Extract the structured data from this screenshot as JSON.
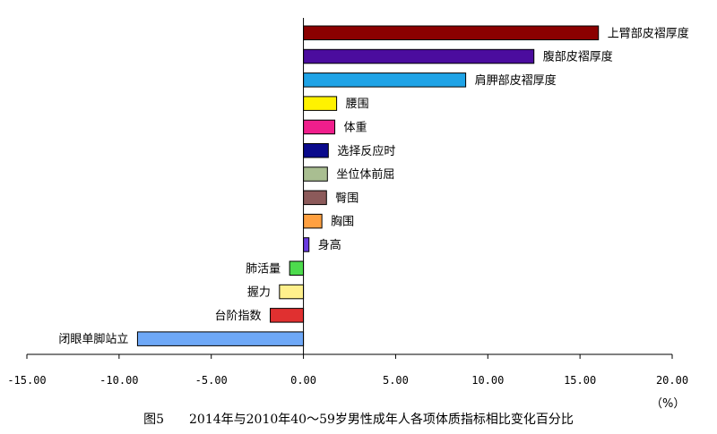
{
  "chart_data": {
    "type": "bar",
    "orientation": "horizontal",
    "categories": [
      "上臂部皮褶厚度",
      "腹部皮褶厚度",
      "肩胛部皮褶厚度",
      "腰围",
      "体重",
      "选择反应时",
      "坐位体前屈",
      "臀围",
      "胸围",
      "身高",
      "肺活量",
      "握力",
      "台阶指数",
      "闭眼单脚站立"
    ],
    "values": [
      16.0,
      12.5,
      8.8,
      1.8,
      1.7,
      1.35,
      1.3,
      1.25,
      1.0,
      0.3,
      -0.75,
      -1.3,
      -1.8,
      -9.0
    ],
    "colors": [
      "#8B0000",
      "#4B0C9E",
      "#1FA3E6",
      "#FFF200",
      "#F01E8C",
      "#0A0A8C",
      "#A9BE91",
      "#8C5A5A",
      "#FFA040",
      "#6A3BE0",
      "#4DDB4D",
      "#FFF08C",
      "#E03030",
      "#6EA8F7"
    ],
    "xlim": [
      -15,
      20
    ],
    "xticks": [
      "-15.00",
      "-10.00",
      "-5.00",
      "0.00",
      "5.00",
      "10.00",
      "15.00",
      "20.00"
    ],
    "xtick_values": [
      -15,
      -10,
      -5,
      0,
      5,
      10,
      15,
      20
    ],
    "unit": "（%）",
    "caption": "图5　　2014年与2010年40～59岁男性成年人各项体质指标相比变化百分比"
  }
}
